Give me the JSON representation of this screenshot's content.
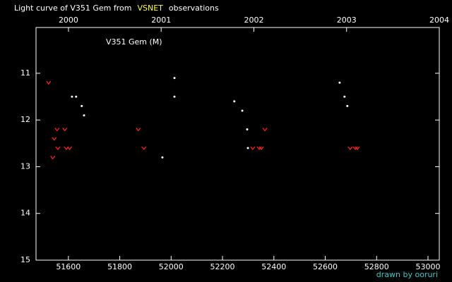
{
  "chart_data": {
    "type": "scatter",
    "title_parts": [
      "Light curve of V351 Gem from",
      "VSNET",
      "observations"
    ],
    "title_colors": [
      "#ffffff",
      "#ffff33",
      "#ffffff"
    ],
    "annotation": "V351 Gem (M)",
    "credit": "drawn by ooruri",
    "credit_color": "#33cccc",
    "background": "#000000",
    "xlim": [
      51474,
      53044
    ],
    "xticks": [
      51600,
      51800,
      52000,
      52200,
      52400,
      52600,
      52800,
      53000
    ],
    "x2lim": [
      1999.65,
      2004
    ],
    "x2ticks": [
      2000,
      2001,
      2002,
      2003,
      2004
    ],
    "ylim": [
      15,
      10.02
    ],
    "yticks": [
      11,
      12,
      13,
      14,
      15
    ],
    "series": [
      {
        "marker": "dot",
        "color": "#ffffff",
        "x": [
          51614,
          51630,
          51652,
          51661,
          51966,
          52013,
          52013,
          52246,
          52277,
          52296,
          52299,
          52656,
          52675,
          52686
        ],
        "values": [
          11.5,
          11.5,
          11.7,
          11.9,
          12.8,
          11.1,
          11.5,
          11.6,
          11.8,
          12.2,
          12.6,
          11.2,
          11.5,
          11.7
        ]
      },
      {
        "marker": "v",
        "color": "#ff2020",
        "x": [
          51523,
          51539,
          51545,
          51556,
          51559,
          51586,
          51592,
          51605,
          51872,
          51894,
          52318,
          52343,
          52351,
          52365,
          52697,
          52717,
          52725
        ],
        "values": [
          11.2,
          12.8,
          12.4,
          12.2,
          12.6,
          12.2,
          12.6,
          12.6,
          12.2,
          12.6,
          12.6,
          12.6,
          12.6,
          12.2,
          12.6,
          12.6,
          12.6
        ]
      }
    ]
  }
}
